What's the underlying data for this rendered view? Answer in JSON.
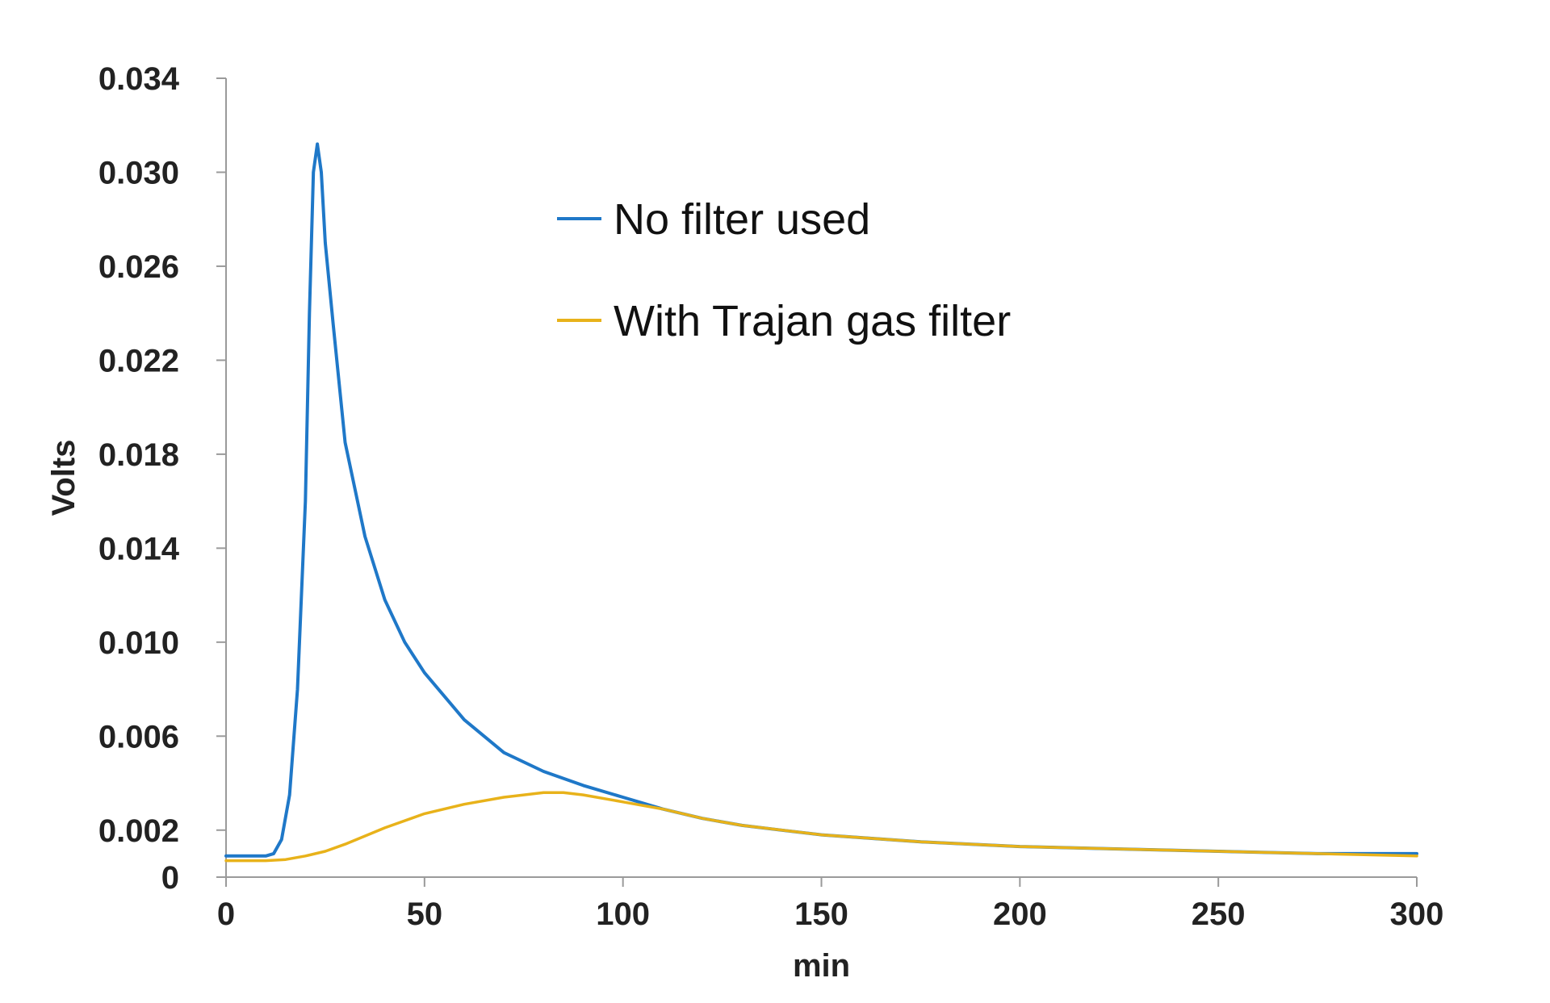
{
  "chart_data": {
    "type": "line",
    "title": "",
    "xlabel": "min",
    "ylabel": "Volts",
    "xlim": [
      0,
      300
    ],
    "ylim": [
      0,
      0.034
    ],
    "x_ticks": [
      "0",
      "50",
      "100",
      "150",
      "200",
      "250",
      "300"
    ],
    "y_ticks": [
      "0",
      "0.002",
      "0.006",
      "0.010",
      "0.014",
      "0.018",
      "0.022",
      "0.026",
      "0.030",
      "0.034"
    ],
    "grid": false,
    "legend_position": "upper-center",
    "series": [
      {
        "name": "No filter used",
        "color": "#1f78c8",
        "x": [
          0,
          10,
          12,
          14,
          16,
          18,
          20,
          21,
          22,
          23,
          24,
          25,
          27,
          30,
          35,
          40,
          45,
          50,
          60,
          70,
          80,
          90,
          100,
          110,
          120,
          130,
          140,
          150,
          175,
          200,
          225,
          250,
          275,
          300
        ],
        "y": [
          0.0009,
          0.0009,
          0.001,
          0.0016,
          0.0035,
          0.008,
          0.016,
          0.024,
          0.03,
          0.0312,
          0.03,
          0.027,
          0.0235,
          0.0185,
          0.0145,
          0.0118,
          0.01,
          0.0087,
          0.0067,
          0.0053,
          0.0045,
          0.0039,
          0.0034,
          0.0029,
          0.0025,
          0.0022,
          0.002,
          0.0018,
          0.0015,
          0.0013,
          0.0012,
          0.0011,
          0.001,
          0.001
        ]
      },
      {
        "name": "With Trajan gas filter",
        "color": "#e8b21a",
        "x": [
          0,
          10,
          15,
          20,
          25,
          30,
          40,
          50,
          60,
          70,
          80,
          85,
          90,
          100,
          110,
          120,
          130,
          150,
          175,
          200,
          225,
          250,
          275,
          300
        ],
        "y": [
          0.0007,
          0.0007,
          0.00075,
          0.0009,
          0.0011,
          0.0014,
          0.0021,
          0.0027,
          0.0031,
          0.0034,
          0.0036,
          0.0036,
          0.0035,
          0.0032,
          0.0029,
          0.0025,
          0.0022,
          0.0018,
          0.0015,
          0.0013,
          0.0012,
          0.0011,
          0.001,
          0.0009
        ]
      }
    ]
  }
}
